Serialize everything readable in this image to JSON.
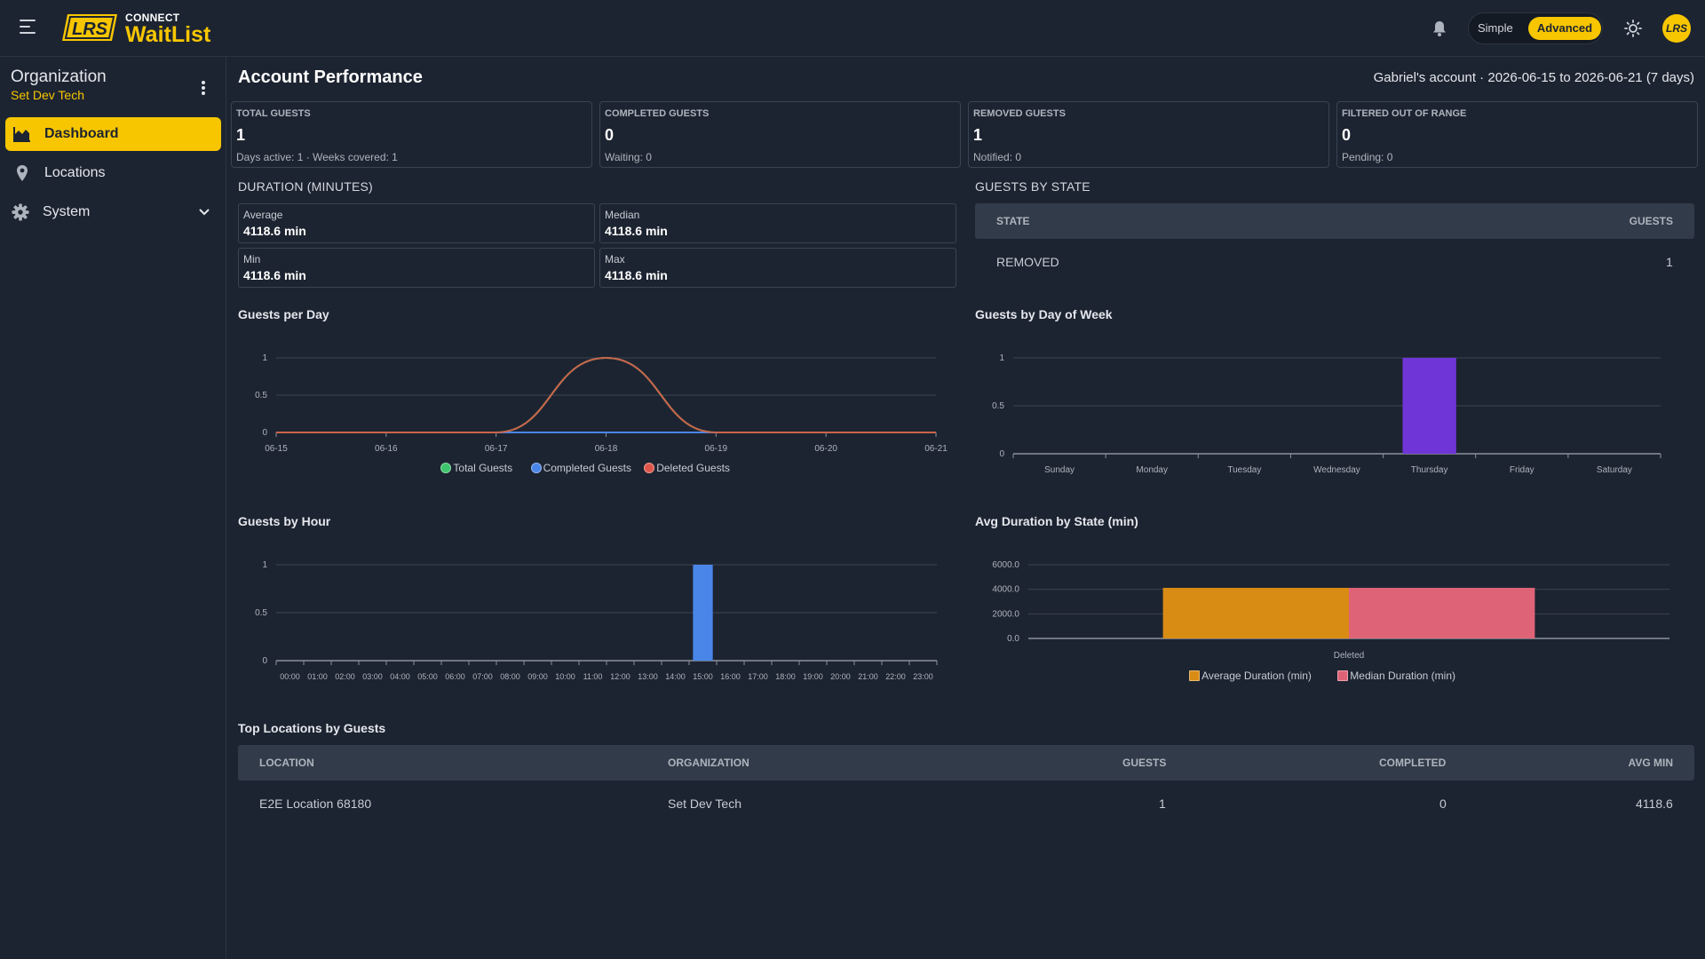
{
  "app": {
    "brand_small": "CONNECT",
    "brand_big": "WaitList",
    "logo_text": "LRS",
    "mode_simple": "Simple",
    "mode_advanced": "Advanced",
    "active_mode": "Advanced",
    "avatar_text": "LRS",
    "accent_color": "#f7c600"
  },
  "sidebar": {
    "org_title": "Organization",
    "org_name": "Set Dev Tech",
    "items": [
      {
        "label": "Dashboard",
        "icon": "area-chart-icon",
        "active": true
      },
      {
        "label": "Locations",
        "icon": "map-pin-icon",
        "active": false
      },
      {
        "label": "System",
        "icon": "gear-icon",
        "active": false,
        "expandable": true
      }
    ]
  },
  "page": {
    "title": "Account Performance",
    "account_info": "Gabriel's account · 2026-06-15 to 2026-06-21 (7 days)"
  },
  "stats": [
    {
      "label": "TOTAL GUESTS",
      "value": "1",
      "sub": "Days active: 1 · Weeks covered: 1"
    },
    {
      "label": "COMPLETED GUESTS",
      "value": "0",
      "sub": "Waiting: 0"
    },
    {
      "label": "REMOVED GUESTS",
      "value": "1",
      "sub": "Notified: 0"
    },
    {
      "label": "FILTERED OUT OF RANGE",
      "value": "0",
      "sub": "Pending: 0"
    }
  ],
  "duration": {
    "title": "DURATION (MINUTES)",
    "cards": [
      {
        "label": "Average",
        "value": "4118.6 min"
      },
      {
        "label": "Median",
        "value": "4118.6 min"
      },
      {
        "label": "Min",
        "value": "4118.6 min"
      },
      {
        "label": "Max",
        "value": "4118.6 min"
      }
    ]
  },
  "guests_by_state": {
    "title": "GUESTS BY STATE",
    "headers": [
      "STATE",
      "GUESTS"
    ],
    "rows": [
      [
        "REMOVED",
        "1"
      ]
    ]
  },
  "top_locations": {
    "title": "Top Locations by Guests",
    "headers": [
      "LOCATION",
      "ORGANIZATION",
      "GUESTS",
      "COMPLETED",
      "AVG MIN"
    ],
    "rows": [
      [
        "E2E Location 68180",
        "Set Dev Tech",
        "1",
        "0",
        "4118.6"
      ]
    ]
  },
  "chart_data": [
    {
      "title": "Guests per Day",
      "type": "line",
      "categories": [
        "06-15",
        "06-16",
        "06-17",
        "06-18",
        "06-19",
        "06-20",
        "06-21"
      ],
      "y_ticks": [
        "0",
        "0.5",
        "1"
      ],
      "ylim": [
        0,
        1
      ],
      "series": [
        {
          "name": "Total Guests",
          "values": [
            0,
            0,
            0,
            1,
            0,
            0,
            0
          ],
          "color": "#3ec46d"
        },
        {
          "name": "Completed Guests",
          "values": [
            0,
            0,
            0,
            0,
            0,
            0,
            0
          ],
          "color": "#4a86e8"
        },
        {
          "name": "Deleted Guests",
          "values": [
            0,
            0,
            0,
            1,
            0,
            0,
            0
          ],
          "color": "#e0554a"
        }
      ],
      "visible_line_color": "#c9644a",
      "legend_position": "bottom"
    },
    {
      "title": "Guests by Day of Week",
      "type": "bar",
      "categories": [
        "Sunday",
        "Monday",
        "Tuesday",
        "Wednesday",
        "Thursday",
        "Friday",
        "Saturday"
      ],
      "values": [
        0,
        0,
        0,
        0,
        1,
        0,
        0
      ],
      "y_ticks": [
        "0",
        "0.5",
        "1"
      ],
      "ylim": [
        0,
        1
      ],
      "color": "#6f35d6"
    },
    {
      "title": "Guests by Hour",
      "type": "bar",
      "categories": [
        "00:00",
        "01:00",
        "02:00",
        "03:00",
        "04:00",
        "05:00",
        "06:00",
        "07:00",
        "08:00",
        "09:00",
        "10:00",
        "11:00",
        "12:00",
        "13:00",
        "14:00",
        "15:00",
        "16:00",
        "17:00",
        "18:00",
        "19:00",
        "20:00",
        "21:00",
        "22:00",
        "23:00"
      ],
      "values": [
        0,
        0,
        0,
        0,
        0,
        0,
        0,
        0,
        0,
        0,
        0,
        0,
        0,
        0,
        0,
        1,
        0,
        0,
        0,
        0,
        0,
        0,
        0,
        0
      ],
      "y_ticks": [
        "0",
        "0.5",
        "1"
      ],
      "ylim": [
        0,
        1
      ],
      "color": "#4a86e8"
    },
    {
      "title": "Avg Duration by State (min)",
      "type": "bar",
      "categories": [
        "Deleted"
      ],
      "series": [
        {
          "name": "Average Duration (min)",
          "values": [
            4118.6
          ],
          "color": "#d98c14"
        },
        {
          "name": "Median Duration (min)",
          "values": [
            4118.6
          ],
          "color": "#df6377"
        }
      ],
      "y_ticks": [
        "0.0",
        "2000.0",
        "4000.0",
        "6000.0"
      ],
      "ylim": [
        0,
        6000
      ],
      "legend_position": "bottom"
    }
  ]
}
